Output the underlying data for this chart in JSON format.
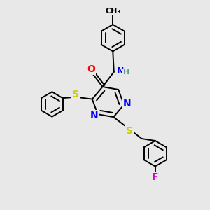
{
  "bg_color": "#e8e8e8",
  "bond_color": "#000000",
  "N_color": "#0000ff",
  "O_color": "#ff0000",
  "S_color": "#cccc00",
  "F_color": "#cc00cc",
  "H_color": "#5a9a9a",
  "line_width": 1.4,
  "font_size": 9,
  "figsize": [
    3.0,
    3.0
  ],
  "dpi": 100,
  "xlim": [
    0,
    10
  ],
  "ylim": [
    0,
    10
  ]
}
